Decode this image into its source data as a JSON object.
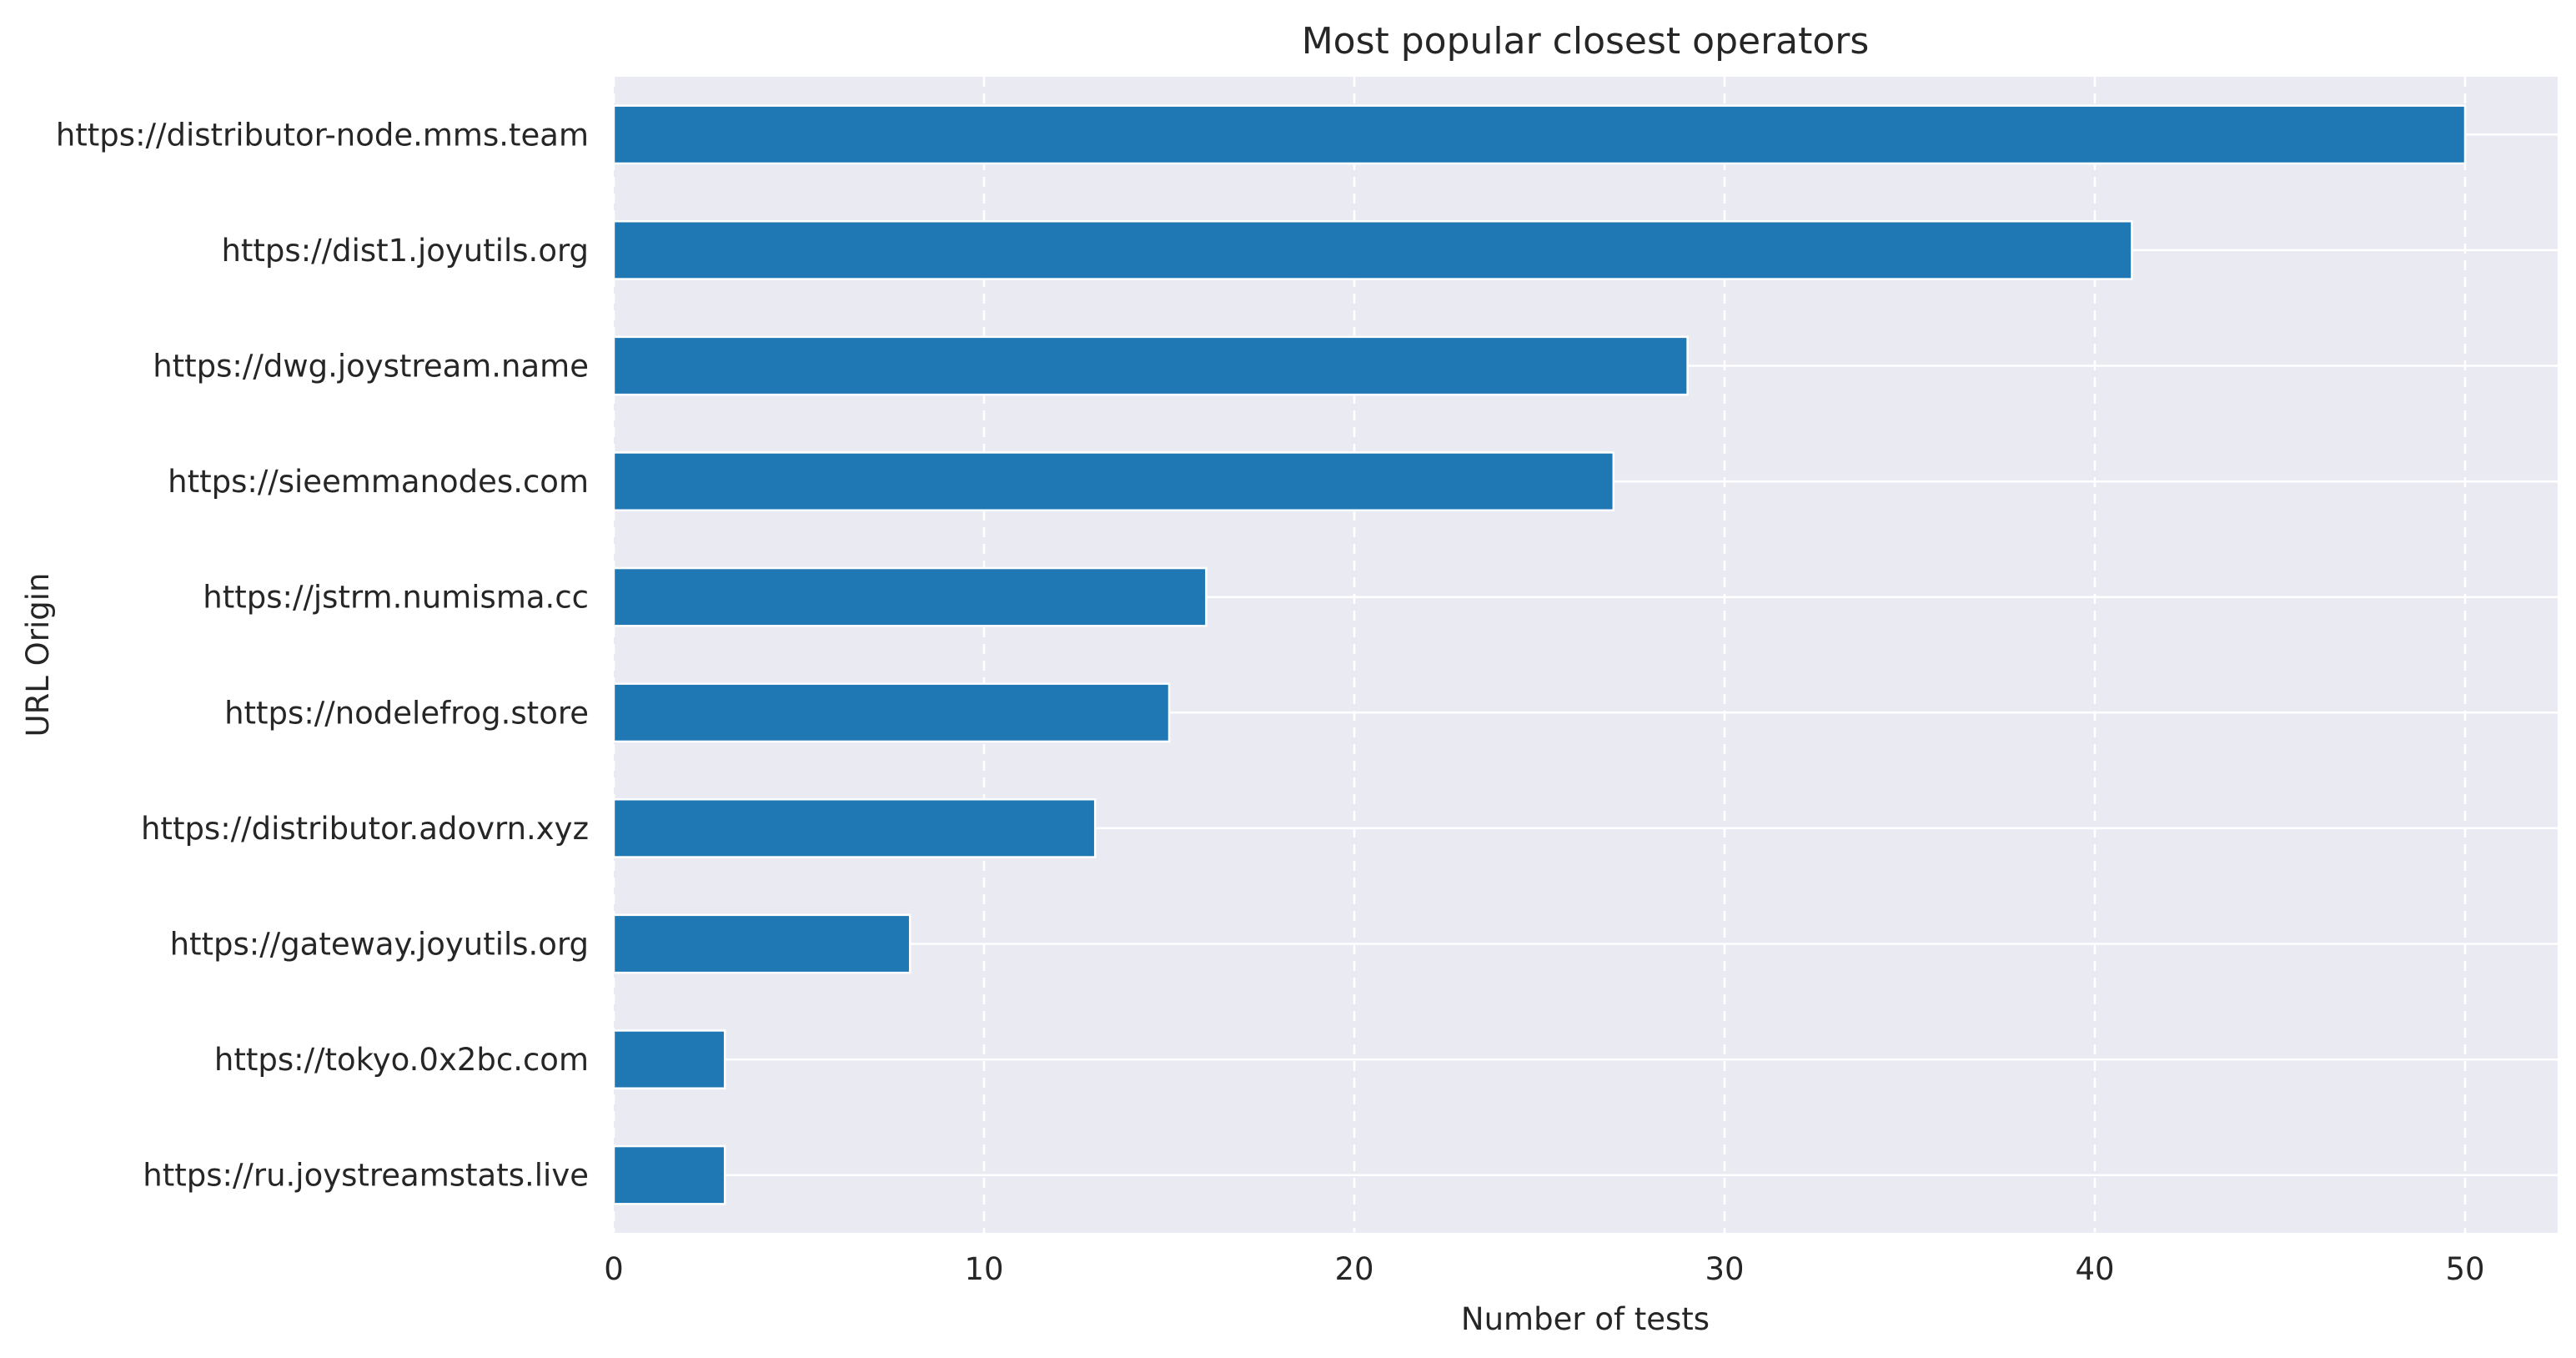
{
  "chart_data": {
    "type": "bar",
    "orientation": "horizontal",
    "title": "Most popular closest operators",
    "xlabel": "Number of tests",
    "ylabel": "URL Origin",
    "categories": [
      "https://distributor-node.mms.team",
      "https://dist1.joyutils.org",
      "https://dwg.joystream.name",
      "https://sieemmanodes.com",
      "https://jstrm.numisma.cc",
      "https://nodelefrog.store",
      "https://distributor.adovrn.xyz",
      "https://gateway.joyutils.org",
      "https://tokyo.0x2bc.com",
      "https://ru.joystreamstats.live"
    ],
    "values": [
      50,
      41,
      29,
      27,
      16,
      15,
      13,
      8,
      3,
      3
    ],
    "xlim": [
      0,
      52.5
    ],
    "xticks": [
      0,
      10,
      20,
      30,
      40,
      50
    ],
    "grid": true,
    "legend": "none",
    "colors": {
      "bar": "#1f77b4",
      "plot_background": "#eaeaf2",
      "grid": "#ffffff",
      "text": "#262626"
    }
  }
}
